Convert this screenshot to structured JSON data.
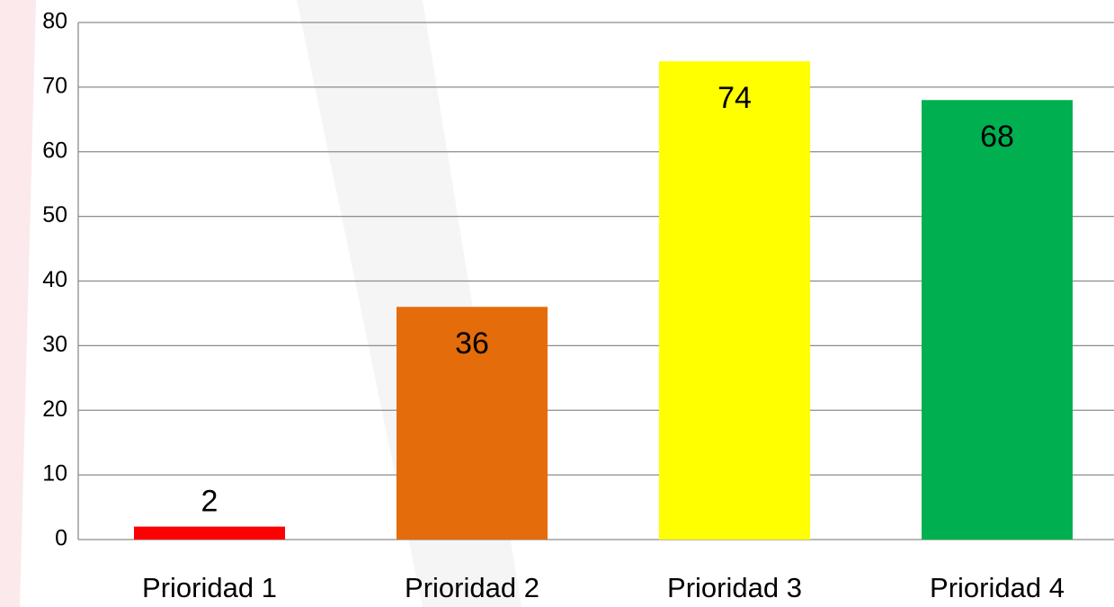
{
  "chart_data": {
    "type": "bar",
    "categories": [
      "Prioridad 1",
      "Prioridad 2",
      "Prioridad 3",
      "Prioridad 4"
    ],
    "values": [
      2,
      36,
      74,
      68
    ],
    "colors": [
      "#ff0000",
      "#e46c0a",
      "#ffff00",
      "#00b050"
    ],
    "ylim": [
      0,
      80
    ],
    "yticks": [
      0,
      10,
      20,
      30,
      40,
      50,
      60,
      70,
      80
    ],
    "grid": true
  }
}
